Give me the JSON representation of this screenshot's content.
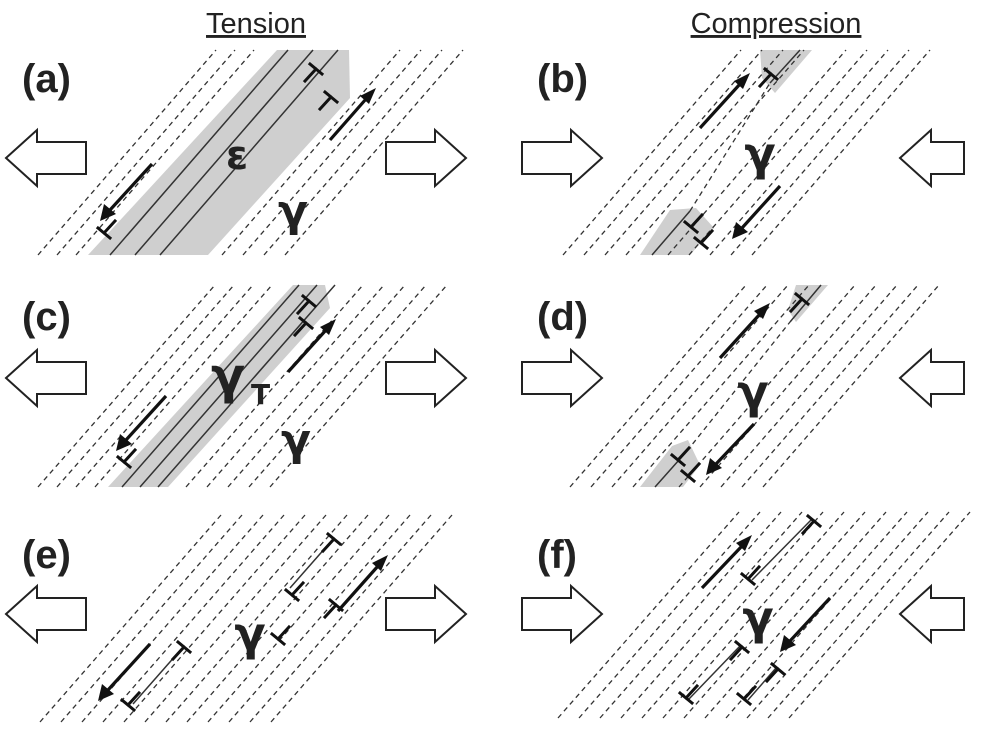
{
  "headers": {
    "tension": "Tension",
    "compression": "Compression"
  },
  "panels": [
    {
      "label": "(a)",
      "loading": "tension",
      "matrix_phase": "γ",
      "band_phase": "ε",
      "band_subscript": ""
    },
    {
      "label": "(b)",
      "loading": "compression",
      "matrix_phase": "γ",
      "band_phase": "",
      "band_subscript": ""
    },
    {
      "label": "(c)",
      "loading": "tension",
      "matrix_phase": "γ",
      "band_phase": "γ",
      "band_subscript": "T"
    },
    {
      "label": "(d)",
      "loading": "compression",
      "matrix_phase": "γ",
      "band_phase": "",
      "band_subscript": ""
    },
    {
      "label": "(e)",
      "loading": "tension",
      "matrix_phase": "γ",
      "band_phase": "",
      "band_subscript": ""
    },
    {
      "label": "(f)",
      "loading": "compression",
      "matrix_phase": "γ",
      "band_phase": "",
      "band_subscript": ""
    }
  ],
  "icons": {
    "load_arrow": "hollow-block-arrow-icon",
    "dislocation": "edge-dislocation-symbol-icon",
    "shear_direction": "shear-direction-arrow-icon"
  },
  "colors": {
    "band_fill": "#cfcfcf",
    "ink": "#222222"
  }
}
